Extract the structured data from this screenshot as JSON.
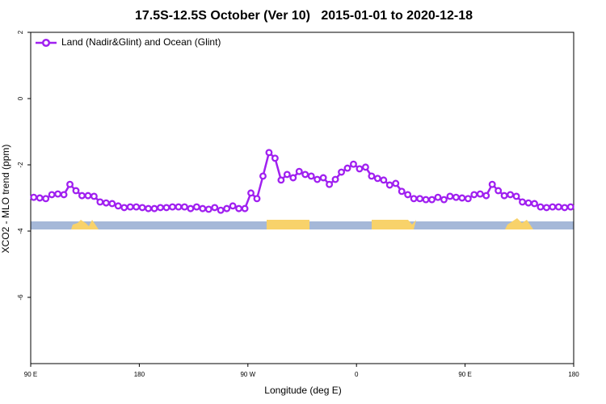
{
  "chart_data": {
    "type": "line",
    "title": "17.5S-12.5S October (Ver 10)   2015-01-01 to 2020-12-18",
    "xlabel": "Longitude (deg E)",
    "ylabel": "XCO2 - MLO trend (ppm)",
    "x": [
      92.5,
      97.5,
      102.5,
      107.5,
      112.5,
      117.5,
      122.5,
      127.5,
      132.5,
      137.5,
      142.5,
      147.5,
      152.5,
      157.5,
      162.5,
      167.5,
      172.5,
      177.5,
      182.5,
      187.5,
      192.5,
      197.5,
      202.5,
      207.5,
      212.5,
      217.5,
      222.5,
      227.5,
      232.5,
      237.5,
      242.5,
      247.5,
      252.5,
      257.5,
      262.5,
      267.5,
      272.5,
      277.5,
      282.5,
      287.5,
      292.5,
      297.5,
      302.5,
      307.5,
      312.5,
      317.5,
      322.5,
      327.5,
      332.5,
      337.5,
      342.5,
      347.5,
      352.5,
      357.5,
      362.5,
      367.5,
      372.5,
      377.5,
      382.5,
      387.5,
      392.5,
      397.5,
      402.5,
      407.5,
      412.5,
      417.5,
      422.5,
      427.5,
      432.5,
      437.5,
      442.5,
      447.5,
      452.5,
      457.5,
      462.5,
      467.5,
      472.5,
      477.5,
      482.5,
      487.5,
      492.5,
      497.5,
      502.5,
      507.5,
      512.5,
      517.5,
      522.5,
      527.5,
      532.5,
      537.5
    ],
    "series": [
      {
        "name": "Land (Nadir&Glint) and Ocean (Glint)",
        "color": "#a020f0",
        "values": [
          -2.98,
          -3.0,
          -3.02,
          -2.9,
          -2.88,
          -2.9,
          -2.59,
          -2.78,
          -2.93,
          -2.93,
          -2.95,
          -3.12,
          -3.15,
          -3.17,
          -3.24,
          -3.29,
          -3.27,
          -3.27,
          -3.29,
          -3.32,
          -3.32,
          -3.29,
          -3.29,
          -3.27,
          -3.27,
          -3.27,
          -3.32,
          -3.27,
          -3.32,
          -3.34,
          -3.29,
          -3.37,
          -3.32,
          -3.24,
          -3.32,
          -3.32,
          -2.85,
          -3.02,
          -2.34,
          -1.63,
          -1.8,
          -2.46,
          -2.29,
          -2.39,
          -2.2,
          -2.29,
          -2.34,
          -2.44,
          -2.39,
          -2.59,
          -2.44,
          -2.22,
          -2.1,
          -1.98,
          -2.12,
          -2.07,
          -2.34,
          -2.41,
          -2.46,
          -2.61,
          -2.56,
          -2.8,
          -2.9,
          -3.02,
          -3.02,
          -3.05,
          -3.05,
          -2.98,
          -3.05,
          -2.95,
          -2.98,
          -3.0,
          -3.02,
          -2.9,
          -2.88,
          -2.93,
          -2.59,
          -2.78,
          -2.93,
          -2.9,
          -2.95,
          -3.12,
          -3.15,
          -3.17,
          -3.27,
          -3.29,
          -3.27,
          -3.27,
          -3.29,
          -3.27
        ]
      }
    ],
    "xlim": [
      90,
      540
    ],
    "xticks": [
      {
        "value": 90,
        "label": "90 E"
      },
      180,
      {
        "value": 270,
        "label": "90 W"
      },
      {
        "value": 360,
        "label": "0"
      },
      {
        "value": 450,
        "label": "90 E"
      },
      {
        "value": 540,
        "label": "180"
      }
    ],
    "ylim": [
      -8,
      2
    ],
    "yticks": [
      2,
      0,
      -2,
      -4,
      -6
    ],
    "legend": "top-left"
  }
}
